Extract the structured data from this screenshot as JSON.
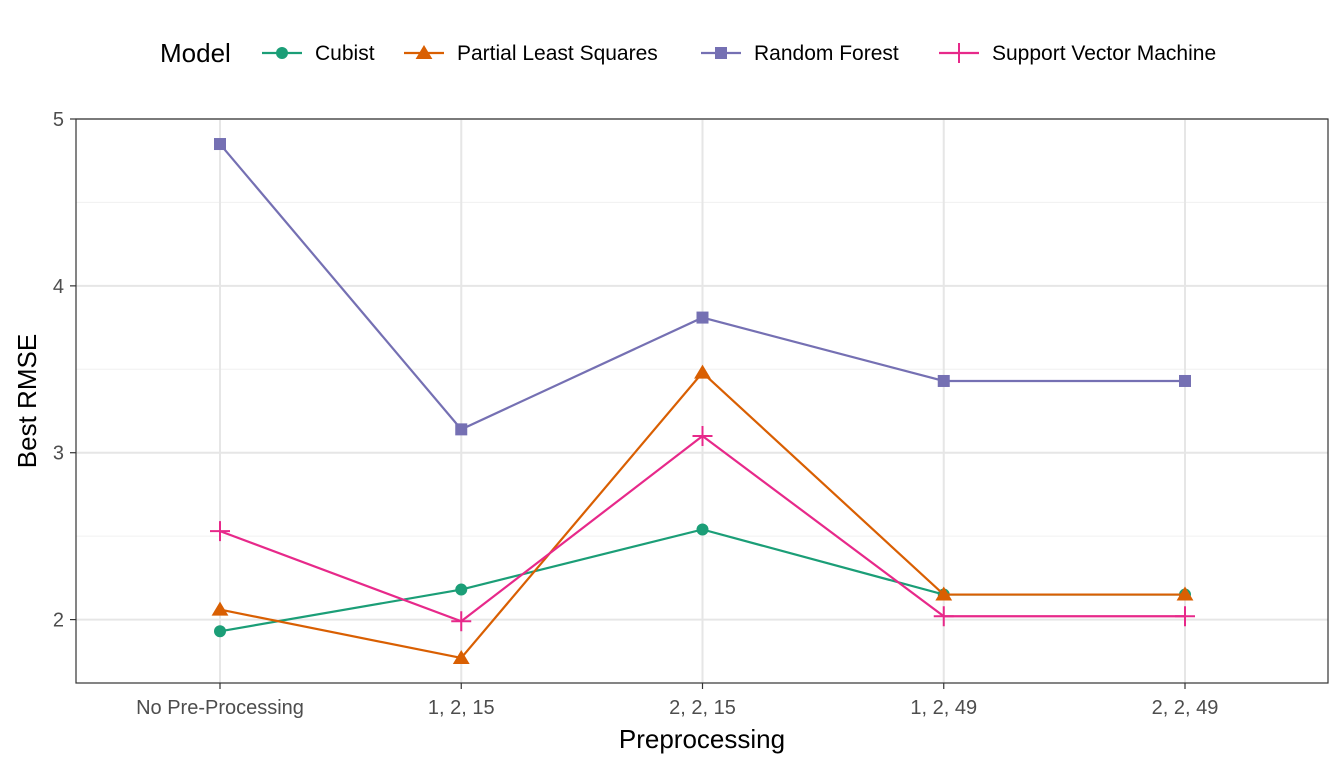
{
  "chart_data": {
    "type": "line",
    "title": "",
    "xlabel": "Preprocessing",
    "ylabel": "Best RMSE",
    "legend_title": "Model",
    "legend_position": "top",
    "grid": true,
    "ylim": [
      1.62,
      5.0
    ],
    "yticks": [
      2,
      3,
      4,
      5
    ],
    "categories": [
      "No Pre-Processing",
      "1, 2, 15",
      "2, 2, 15",
      "1, 2, 49",
      "2, 2, 49"
    ],
    "series": [
      {
        "name": "Cubist",
        "color": "#1b9e77",
        "marker": "circle",
        "values": [
          1.93,
          2.18,
          2.54,
          2.15,
          2.15
        ]
      },
      {
        "name": "Partial Least Squares",
        "color": "#d95f02",
        "marker": "triangle",
        "values": [
          2.06,
          1.77,
          3.48,
          2.15,
          2.15
        ]
      },
      {
        "name": "Random Forest",
        "color": "#7570b3",
        "marker": "square",
        "values": [
          4.85,
          3.14,
          3.81,
          3.43,
          3.43
        ]
      },
      {
        "name": "Support Vector Machine",
        "color": "#e7298a",
        "marker": "plus",
        "values": [
          2.53,
          1.99,
          3.1,
          2.02,
          2.02
        ]
      }
    ]
  }
}
